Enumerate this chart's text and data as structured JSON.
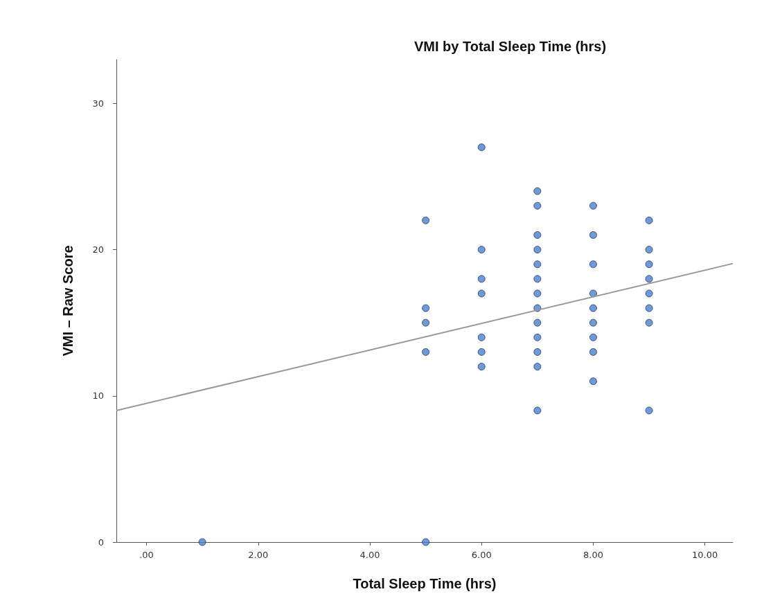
{
  "chart_data": {
    "type": "scatter",
    "title": "VMI by Total Sleep Time (hrs)",
    "xlabel": "Total Sleep Time (hrs)",
    "ylabel": "VMI – Raw Score",
    "xlim": [
      -0.54,
      10.5
    ],
    "ylim": [
      0,
      33
    ],
    "xticks": [
      {
        "value": 0,
        "label": ".00"
      },
      {
        "value": 2,
        "label": "2.00"
      },
      {
        "value": 4,
        "label": "4.00"
      },
      {
        "value": 6,
        "label": "6.00"
      },
      {
        "value": 8,
        "label": "8.00"
      },
      {
        "value": 10,
        "label": "10.00"
      }
    ],
    "yticks": [
      0,
      10,
      20,
      30
    ],
    "grid": false,
    "marker": "circle",
    "series": [
      {
        "color": "#4a80d2",
        "x": [
          1,
          5,
          5,
          5,
          5,
          5,
          6,
          6,
          6,
          6,
          6,
          6,
          6,
          7,
          7,
          7,
          7,
          7,
          7,
          7,
          7,
          7,
          7,
          7,
          7,
          7,
          8,
          8,
          8,
          8,
          8,
          8,
          8,
          8,
          8,
          9,
          9,
          9,
          9,
          9,
          9,
          9,
          9
        ],
        "values": [
          0,
          22,
          16,
          15,
          13,
          0,
          27,
          20,
          18,
          17,
          14,
          13,
          12,
          24,
          23,
          21,
          20,
          19,
          18,
          17,
          16,
          15,
          14,
          13,
          12,
          9,
          23,
          21,
          19,
          17,
          16,
          15,
          14,
          13,
          11,
          22,
          20,
          19,
          18,
          17,
          16,
          15,
          9
        ]
      },
      {
        "type": "line",
        "color": "#999999",
        "x": [
          -0.54,
          10.5
        ],
        "values": [
          9.0,
          19.05
        ],
        "marker": "none"
      }
    ]
  }
}
